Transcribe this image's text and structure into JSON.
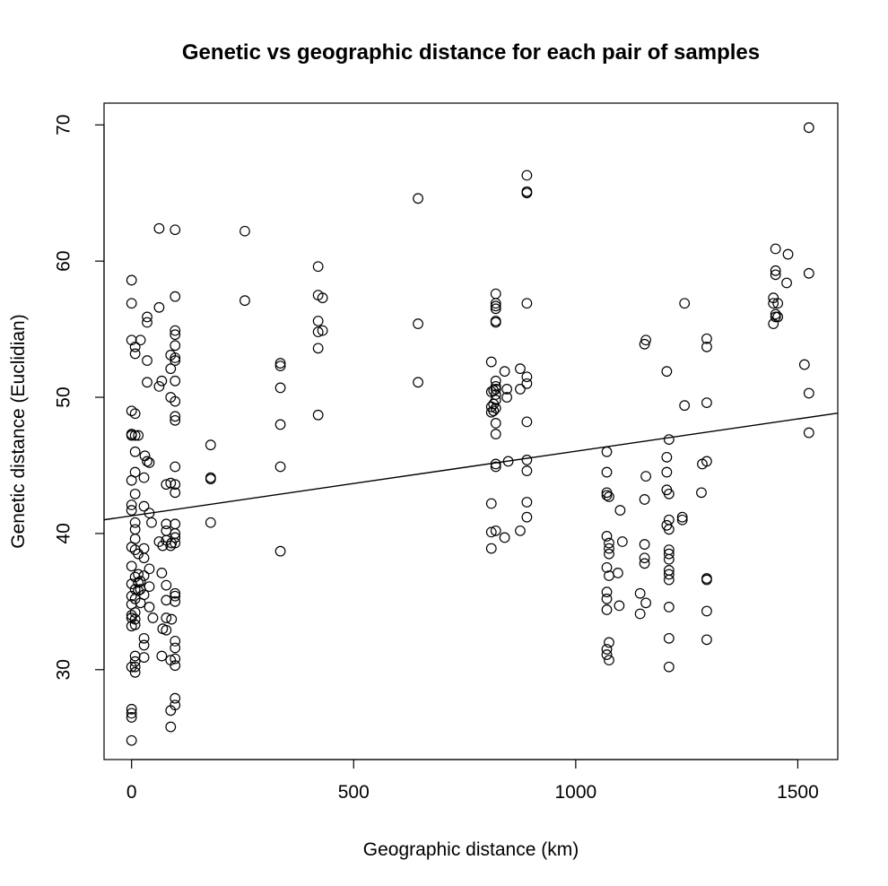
{
  "chart_data": {
    "type": "scatter",
    "title": "Genetic vs geographic distance for each pair of samples",
    "xlabel": "Geographic distance (km)",
    "ylabel": "Genetic distance (Euclidian)",
    "xlim": [
      -62,
      1590
    ],
    "ylim": [
      23.4,
      71.6
    ],
    "x_ticks": [
      0,
      500,
      1000,
      1500
    ],
    "y_ticks": [
      30,
      40,
      50,
      60,
      70
    ],
    "grid": false,
    "legend": "none",
    "regression_line": {
      "intercept": 41.3,
      "slope": 0.00474
    },
    "points": [
      [
        0,
        58.6
      ],
      [
        0,
        56.9
      ],
      [
        0,
        54.2
      ],
      [
        0,
        49.0
      ],
      [
        0,
        47.3
      ],
      [
        0,
        47.2
      ],
      [
        0,
        43.9
      ],
      [
        0,
        42.1
      ],
      [
        0,
        41.7
      ],
      [
        0,
        39.0
      ],
      [
        0,
        37.6
      ],
      [
        0,
        36.3
      ],
      [
        0,
        35.4
      ],
      [
        0,
        34.8
      ],
      [
        0,
        34.0
      ],
      [
        0,
        33.8
      ],
      [
        0,
        33.2
      ],
      [
        0,
        30.2
      ],
      [
        0,
        27.1
      ],
      [
        0,
        26.8
      ],
      [
        0,
        26.5
      ],
      [
        0,
        24.8
      ],
      [
        8,
        53.7
      ],
      [
        8,
        53.2
      ],
      [
        8,
        48.8
      ],
      [
        8,
        47.2
      ],
      [
        8,
        46.0
      ],
      [
        8,
        44.5
      ],
      [
        8,
        42.9
      ],
      [
        8,
        40.8
      ],
      [
        8,
        40.3
      ],
      [
        8,
        39.6
      ],
      [
        8,
        38.8
      ],
      [
        8,
        36.8
      ],
      [
        8,
        35.9
      ],
      [
        8,
        35.2
      ],
      [
        8,
        34.2
      ],
      [
        8,
        33.7
      ],
      [
        8,
        33.3
      ],
      [
        8,
        31.0
      ],
      [
        8,
        30.6
      ],
      [
        8,
        30.2
      ],
      [
        8,
        29.8
      ],
      [
        15,
        47.2
      ],
      [
        15,
        38.5
      ],
      [
        15,
        37.0
      ],
      [
        15,
        36.4
      ],
      [
        15,
        35.8
      ],
      [
        20,
        54.2
      ],
      [
        20,
        36.5
      ],
      [
        20,
        35.9
      ],
      [
        20,
        34.9
      ],
      [
        28,
        44.1
      ],
      [
        28,
        42.0
      ],
      [
        28,
        38.9
      ],
      [
        28,
        38.2
      ],
      [
        28,
        36.9
      ],
      [
        28,
        35.5
      ],
      [
        28,
        32.3
      ],
      [
        28,
        31.8
      ],
      [
        28,
        30.9
      ],
      [
        30,
        45.7
      ],
      [
        35,
        55.9
      ],
      [
        35,
        55.5
      ],
      [
        35,
        52.7
      ],
      [
        35,
        51.1
      ],
      [
        35,
        45.3
      ],
      [
        40,
        45.2
      ],
      [
        40,
        41.5
      ],
      [
        40,
        37.4
      ],
      [
        40,
        36.1
      ],
      [
        40,
        34.6
      ],
      [
        45,
        40.8
      ],
      [
        48,
        33.8
      ],
      [
        62,
        62.4
      ],
      [
        62,
        56.6
      ],
      [
        62,
        50.8
      ],
      [
        62,
        39.4
      ],
      [
        68,
        51.2
      ],
      [
        68,
        37.1
      ],
      [
        68,
        31.0
      ],
      [
        70,
        33.0
      ],
      [
        70,
        39.1
      ],
      [
        78,
        40.7
      ],
      [
        78,
        43.6
      ],
      [
        78,
        40.2
      ],
      [
        78,
        39.5
      ],
      [
        78,
        36.2
      ],
      [
        78,
        35.1
      ],
      [
        78,
        33.8
      ],
      [
        78,
        32.9
      ],
      [
        88,
        53.1
      ],
      [
        88,
        52.1
      ],
      [
        88,
        50.0
      ],
      [
        88,
        43.7
      ],
      [
        88,
        39.1
      ],
      [
        88,
        30.7
      ],
      [
        88,
        27.0
      ],
      [
        88,
        25.8
      ],
      [
        90,
        39.3
      ],
      [
        90,
        33.7
      ],
      [
        98,
        62.3
      ],
      [
        98,
        57.4
      ],
      [
        98,
        54.9
      ],
      [
        98,
        54.6
      ],
      [
        98,
        53.8
      ],
      [
        98,
        52.9
      ],
      [
        98,
        52.7
      ],
      [
        98,
        51.2
      ],
      [
        98,
        49.7
      ],
      [
        98,
        48.6
      ],
      [
        98,
        48.3
      ],
      [
        98,
        44.9
      ],
      [
        98,
        43.6
      ],
      [
        98,
        43.0
      ],
      [
        98,
        40.7
      ],
      [
        98,
        40.0
      ],
      [
        98,
        39.7
      ],
      [
        98,
        39.3
      ],
      [
        98,
        35.6
      ],
      [
        98,
        35.4
      ],
      [
        98,
        35.0
      ],
      [
        98,
        32.1
      ],
      [
        98,
        31.6
      ],
      [
        98,
        30.8
      ],
      [
        98,
        30.3
      ],
      [
        98,
        27.9
      ],
      [
        98,
        27.4
      ],
      [
        178,
        46.5
      ],
      [
        178,
        44.1
      ],
      [
        178,
        44.0
      ],
      [
        178,
        40.8
      ],
      [
        255,
        62.2
      ],
      [
        255,
        57.1
      ],
      [
        335,
        52.5
      ],
      [
        335,
        52.3
      ],
      [
        335,
        50.7
      ],
      [
        335,
        48.0
      ],
      [
        335,
        44.9
      ],
      [
        335,
        38.7
      ],
      [
        420,
        59.6
      ],
      [
        420,
        57.5
      ],
      [
        420,
        55.6
      ],
      [
        420,
        54.8
      ],
      [
        420,
        53.6
      ],
      [
        420,
        48.7
      ],
      [
        430,
        57.3
      ],
      [
        430,
        54.9
      ],
      [
        645,
        64.6
      ],
      [
        645,
        55.4
      ],
      [
        645,
        51.1
      ],
      [
        810,
        52.6
      ],
      [
        810,
        50.4
      ],
      [
        810,
        49.3
      ],
      [
        810,
        48.9
      ],
      [
        810,
        42.2
      ],
      [
        810,
        40.1
      ],
      [
        810,
        38.9
      ],
      [
        815,
        50.5
      ],
      [
        815,
        49.5
      ],
      [
        815,
        49.0
      ],
      [
        820,
        57.6
      ],
      [
        820,
        56.9
      ],
      [
        820,
        56.7
      ],
      [
        820,
        56.5
      ],
      [
        820,
        55.6
      ],
      [
        820,
        55.5
      ],
      [
        820,
        51.2
      ],
      [
        820,
        50.8
      ],
      [
        820,
        50.6
      ],
      [
        820,
        50.2
      ],
      [
        820,
        49.8
      ],
      [
        820,
        49.2
      ],
      [
        820,
        48.1
      ],
      [
        820,
        47.3
      ],
      [
        820,
        45.1
      ],
      [
        820,
        44.9
      ],
      [
        820,
        40.2
      ],
      [
        840,
        51.9
      ],
      [
        840,
        39.7
      ],
      [
        845,
        50.6
      ],
      [
        845,
        50.0
      ],
      [
        848,
        45.3
      ],
      [
        875,
        52.1
      ],
      [
        875,
        50.6
      ],
      [
        875,
        40.2
      ],
      [
        890,
        66.3
      ],
      [
        890,
        65.1
      ],
      [
        890,
        65.0
      ],
      [
        890,
        56.9
      ],
      [
        890,
        51.5
      ],
      [
        890,
        51.0
      ],
      [
        890,
        48.2
      ],
      [
        890,
        45.4
      ],
      [
        890,
        44.6
      ],
      [
        890,
        42.3
      ],
      [
        890,
        41.2
      ],
      [
        1070,
        46.0
      ],
      [
        1070,
        44.5
      ],
      [
        1070,
        43.0
      ],
      [
        1070,
        42.8
      ],
      [
        1070,
        39.8
      ],
      [
        1070,
        37.5
      ],
      [
        1070,
        35.7
      ],
      [
        1070,
        35.2
      ],
      [
        1070,
        34.4
      ],
      [
        1070,
        31.5
      ],
      [
        1070,
        31.1
      ],
      [
        1075,
        42.7
      ],
      [
        1075,
        39.3
      ],
      [
        1075,
        38.9
      ],
      [
        1075,
        38.5
      ],
      [
        1075,
        36.9
      ],
      [
        1075,
        32.0
      ],
      [
        1075,
        30.7
      ],
      [
        1095,
        37.1
      ],
      [
        1098,
        34.7
      ],
      [
        1100,
        41.7
      ],
      [
        1105,
        39.4
      ],
      [
        1145,
        35.6
      ],
      [
        1145,
        34.1
      ],
      [
        1155,
        53.9
      ],
      [
        1155,
        42.5
      ],
      [
        1155,
        39.2
      ],
      [
        1155,
        37.8
      ],
      [
        1155,
        38.2
      ],
      [
        1158,
        54.2
      ],
      [
        1158,
        44.2
      ],
      [
        1158,
        34.9
      ],
      [
        1205,
        51.9
      ],
      [
        1205,
        45.6
      ],
      [
        1205,
        44.5
      ],
      [
        1205,
        43.2
      ],
      [
        1205,
        40.6
      ],
      [
        1210,
        46.9
      ],
      [
        1210,
        42.9
      ],
      [
        1210,
        41.0
      ],
      [
        1210,
        40.3
      ],
      [
        1210,
        38.8
      ],
      [
        1210,
        38.5
      ],
      [
        1210,
        38.1
      ],
      [
        1210,
        37.3
      ],
      [
        1210,
        37.0
      ],
      [
        1210,
        36.6
      ],
      [
        1210,
        34.6
      ],
      [
        1210,
        32.3
      ],
      [
        1210,
        30.2
      ],
      [
        1240,
        41.2
      ],
      [
        1240,
        41.0
      ],
      [
        1245,
        56.9
      ],
      [
        1245,
        49.4
      ],
      [
        1285,
        45.1
      ],
      [
        1283,
        43.0
      ],
      [
        1295,
        54.3
      ],
      [
        1295,
        53.7
      ],
      [
        1295,
        49.6
      ],
      [
        1295,
        45.3
      ],
      [
        1295,
        36.7
      ],
      [
        1295,
        36.6
      ],
      [
        1295,
        34.3
      ],
      [
        1295,
        32.2
      ],
      [
        1445,
        57.3
      ],
      [
        1445,
        56.9
      ],
      [
        1445,
        55.4
      ],
      [
        1450,
        60.9
      ],
      [
        1450,
        59.3
      ],
      [
        1450,
        59.0
      ],
      [
        1450,
        56.1
      ],
      [
        1450,
        55.9
      ],
      [
        1455,
        56.9
      ],
      [
        1455,
        55.9
      ],
      [
        1478,
        60.5
      ],
      [
        1475,
        58.4
      ],
      [
        1515,
        52.4
      ],
      [
        1525,
        69.8
      ],
      [
        1525,
        59.1
      ],
      [
        1525,
        50.3
      ],
      [
        1525,
        47.4
      ]
    ]
  }
}
